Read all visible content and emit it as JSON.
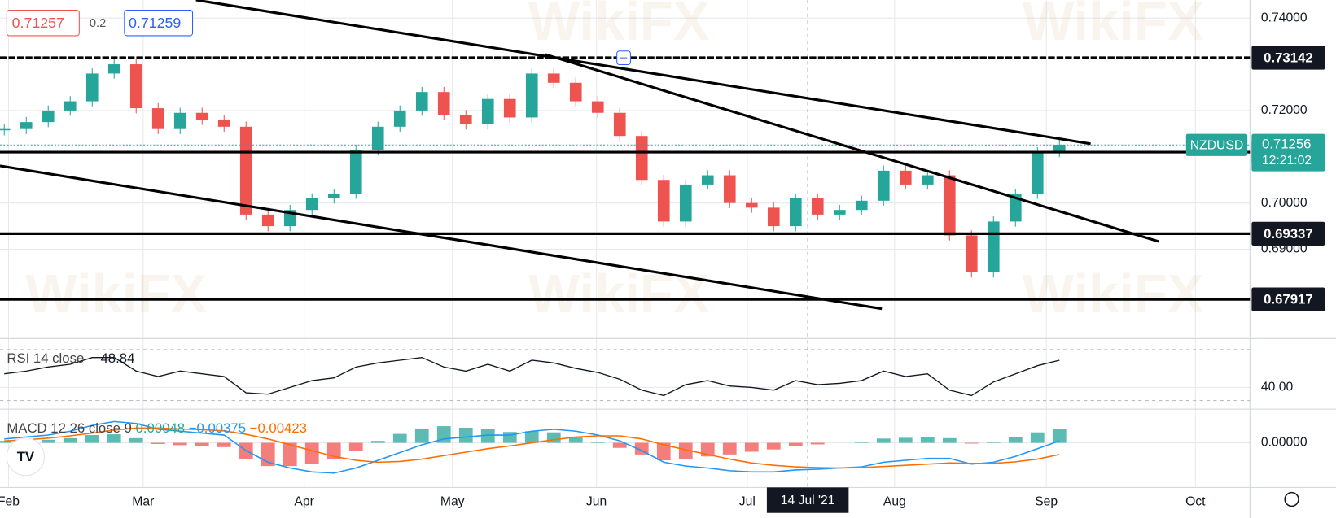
{
  "header": {
    "bid": "0.71257",
    "spread": "0.2",
    "ask": "0.71259"
  },
  "watermark": "WikiFX",
  "x_axis": {
    "months": [
      "Feb",
      "Mar",
      "Apr",
      "May",
      "Jun",
      "Jul",
      "Aug",
      "Sep",
      "Oct"
    ],
    "cursor_date": "14 Jul '21"
  },
  "chart_data": [
    {
      "type": "candlestick",
      "symbol": "NZDUSD",
      "countdown": "12:21:02",
      "last": 0.71256,
      "up_color": "#26a69a",
      "down_color": "#ef5350",
      "close": [
        0.716,
        0.7175,
        0.72,
        0.722,
        0.728,
        0.73,
        0.7205,
        0.716,
        0.7195,
        0.718,
        0.7165,
        0.6975,
        0.695,
        0.6985,
        0.701,
        0.702,
        0.7115,
        0.7165,
        0.72,
        0.724,
        0.719,
        0.717,
        0.7225,
        0.7185,
        0.728,
        0.726,
        0.722,
        0.7195,
        0.7145,
        0.705,
        0.696,
        0.704,
        0.706,
        0.7,
        0.699,
        0.695,
        0.701,
        0.6975,
        0.6985,
        0.7005,
        0.707,
        0.704,
        0.706,
        0.693,
        0.685,
        0.696,
        0.702,
        0.711,
        0.7126
      ],
      "levels": [
        0.73142,
        0.71101,
        0.69337,
        0.67917
      ],
      "ylim": [
        0.6707,
        0.7439
      ],
      "yticks": [
        {
          "value": 0.74,
          "label": "0.74000"
        },
        {
          "value": 0.72,
          "label": "0.72000"
        },
        {
          "value": 0.7,
          "label": "0.70000"
        },
        {
          "value": 0.69,
          "label": "0.69000"
        }
      ]
    },
    {
      "type": "line",
      "title": "RSI 14 close",
      "legend_value": "48.84",
      "color": "#131722",
      "values": [
        50,
        52,
        55,
        57,
        62,
        62,
        52,
        48,
        52,
        50,
        48,
        36,
        35,
        40,
        45,
        47,
        55,
        58,
        60,
        62,
        55,
        52,
        57,
        52,
        60,
        58,
        54,
        51,
        46,
        38,
        34,
        42,
        45,
        41,
        40,
        38,
        45,
        42,
        43,
        45,
        52,
        48,
        50,
        38,
        34,
        44,
        50,
        56,
        60
      ],
      "ylim": [
        24,
        76
      ],
      "yticks": [
        {
          "value": 40,
          "label": "40.00"
        }
      ]
    },
    {
      "type": "macd",
      "title": "MACD 12 26 close 9",
      "legend_values": [
        "0.00048",
        "−0.00375",
        "−0.00423"
      ],
      "macd_color": "#2196f3",
      "signal_color": "#ff6d00",
      "hist_up_color": "#26a69a",
      "hist_down_color": "#ef5350",
      "macd": [
        0.001,
        0.0015,
        0.002,
        0.003,
        0.0045,
        0.0055,
        0.005,
        0.0035,
        0.003,
        0.0025,
        0.002,
        -0.002,
        -0.005,
        -0.0065,
        -0.0075,
        -0.0078,
        -0.0065,
        -0.0045,
        -0.0025,
        -0.0005,
        0.001,
        0.0015,
        0.002,
        0.002,
        0.003,
        0.0035,
        0.003,
        0.002,
        0.0005,
        -0.002,
        -0.005,
        -0.006,
        -0.0065,
        -0.0072,
        -0.0075,
        -0.0075,
        -0.007,
        -0.0068,
        -0.0065,
        -0.0062,
        -0.005,
        -0.0045,
        -0.004,
        -0.004,
        -0.0055,
        -0.005,
        -0.0035,
        -0.0015,
        0.0005
      ],
      "signal": [
        0.0005,
        0.0008,
        0.0012,
        0.0018,
        0.0025,
        0.0033,
        0.0038,
        0.0038,
        0.0036,
        0.0034,
        0.0031,
        0.0022,
        0.001,
        -0.0005,
        -0.002,
        -0.0035,
        -0.0045,
        -0.005,
        -0.0048,
        -0.0042,
        -0.0033,
        -0.0024,
        -0.0015,
        -0.0008,
        0,
        0.0008,
        0.0015,
        0.0018,
        0.0018,
        0.001,
        -0.0005,
        -0.0018,
        -0.003,
        -0.0042,
        -0.0052,
        -0.0058,
        -0.0062,
        -0.0064,
        -0.0065,
        -0.0064,
        -0.0061,
        -0.0058,
        -0.0055,
        -0.0052,
        -0.0053,
        -0.0053,
        -0.0049,
        -0.0042,
        -0.003
      ],
      "histogram": [
        0.0005,
        0.0007,
        0.0008,
        0.0012,
        0.002,
        0.0022,
        0.0012,
        -0.0003,
        -0.0006,
        -0.0009,
        -0.0011,
        -0.0042,
        -0.006,
        -0.006,
        -0.0055,
        -0.0043,
        -0.002,
        0.0005,
        0.0023,
        0.0037,
        0.0043,
        0.0039,
        0.0035,
        0.0028,
        0.003,
        0.0027,
        0.0015,
        0.0002,
        -0.0013,
        -0.003,
        -0.0045,
        -0.0042,
        -0.0035,
        -0.003,
        -0.0023,
        -0.0017,
        -0.0008,
        -0.0004,
        0,
        0.0002,
        0.0011,
        0.0013,
        0.0015,
        0.0012,
        -0.0002,
        0.0003,
        0.0014,
        0.0027,
        0.0035
      ],
      "ylim": [
        -0.0115,
        0.0087
      ],
      "yticks": [
        {
          "value": 0,
          "label": "0.00000"
        }
      ]
    }
  ]
}
